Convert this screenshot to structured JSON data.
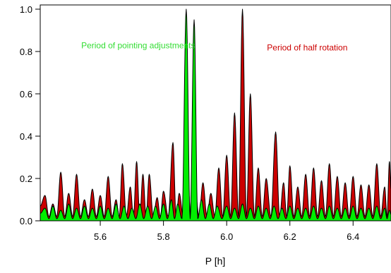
{
  "chart_data": {
    "type": "area",
    "xlabel": "P [h]",
    "ylabel": "",
    "xlim": [
      5.41,
      6.52
    ],
    "ylim": [
      0,
      1.02
    ],
    "x_ticks": [
      5.6,
      5.8,
      6.0,
      6.2,
      6.4
    ],
    "x_tick_labels": [
      "5.6",
      "5.8",
      "6.0",
      "6.2",
      "6.4"
    ],
    "y_ticks": [
      0.0,
      0.2,
      0.4,
      0.6,
      0.8,
      1.0
    ],
    "y_tick_labels": [
      "0.0",
      "0.2",
      "0.4",
      "0.6",
      "0.8",
      "1.0"
    ],
    "grid": false,
    "series": [
      {
        "color": "#cc0000",
        "baseline": 0.02,
        "peaks": [
          [
            5.425,
            0.12
          ],
          [
            5.45,
            0.08
          ],
          [
            5.475,
            0.23
          ],
          [
            5.5,
            0.13
          ],
          [
            5.525,
            0.22
          ],
          [
            5.55,
            0.1
          ],
          [
            5.575,
            0.15
          ],
          [
            5.6,
            0.12
          ],
          [
            5.625,
            0.21
          ],
          [
            5.65,
            0.1
          ],
          [
            5.67,
            0.27
          ],
          [
            5.695,
            0.16
          ],
          [
            5.715,
            0.28
          ],
          [
            5.735,
            0.22
          ],
          [
            5.755,
            0.22
          ],
          [
            5.78,
            0.11
          ],
          [
            5.8,
            0.14
          ],
          [
            5.83,
            0.37
          ],
          [
            5.85,
            0.13
          ],
          [
            5.875,
            0.22
          ],
          [
            5.9,
            0.15
          ],
          [
            5.925,
            0.18
          ],
          [
            5.95,
            0.13
          ],
          [
            5.975,
            0.25
          ],
          [
            6.0,
            0.31
          ],
          [
            6.025,
            0.51
          ],
          [
            6.05,
            1.0
          ],
          [
            6.075,
            0.6
          ],
          [
            6.1,
            0.25
          ],
          [
            6.125,
            0.2
          ],
          [
            6.155,
            0.42
          ],
          [
            6.18,
            0.18
          ],
          [
            6.2,
            0.26
          ],
          [
            6.225,
            0.16
          ],
          [
            6.25,
            0.22
          ],
          [
            6.275,
            0.25
          ],
          [
            6.3,
            0.19
          ],
          [
            6.325,
            0.27
          ],
          [
            6.35,
            0.21
          ],
          [
            6.375,
            0.18
          ],
          [
            6.4,
            0.21
          ],
          [
            6.425,
            0.17
          ],
          [
            6.45,
            0.17
          ],
          [
            6.475,
            0.27
          ],
          [
            6.5,
            0.16
          ],
          [
            6.515,
            0.28
          ]
        ]
      },
      {
        "color": "#00ee00",
        "baseline": 0.01,
        "peaks": [
          [
            5.425,
            0.06
          ],
          [
            5.45,
            0.07
          ],
          [
            5.475,
            0.05
          ],
          [
            5.5,
            0.08
          ],
          [
            5.525,
            0.06
          ],
          [
            5.55,
            0.07
          ],
          [
            5.575,
            0.06
          ],
          [
            5.6,
            0.07
          ],
          [
            5.625,
            0.06
          ],
          [
            5.65,
            0.08
          ],
          [
            5.675,
            0.07
          ],
          [
            5.7,
            0.06
          ],
          [
            5.725,
            0.08
          ],
          [
            5.75,
            0.07
          ],
          [
            5.775,
            0.07
          ],
          [
            5.8,
            0.08
          ],
          [
            5.825,
            0.1
          ],
          [
            5.845,
            0.08
          ],
          [
            5.872,
            1.0
          ],
          [
            5.897,
            0.95
          ],
          [
            5.92,
            0.1
          ],
          [
            5.945,
            0.08
          ],
          [
            5.97,
            0.07
          ],
          [
            6.0,
            0.07
          ],
          [
            6.025,
            0.06
          ],
          [
            6.05,
            0.08
          ],
          [
            6.075,
            0.06
          ],
          [
            6.1,
            0.07
          ],
          [
            6.125,
            0.06
          ],
          [
            6.15,
            0.07
          ],
          [
            6.175,
            0.06
          ],
          [
            6.2,
            0.07
          ],
          [
            6.225,
            0.06
          ],
          [
            6.25,
            0.06
          ],
          [
            6.275,
            0.07
          ],
          [
            6.3,
            0.06
          ],
          [
            6.325,
            0.07
          ],
          [
            6.35,
            0.06
          ],
          [
            6.375,
            0.06
          ],
          [
            6.4,
            0.07
          ],
          [
            6.425,
            0.06
          ],
          [
            6.45,
            0.06
          ],
          [
            6.475,
            0.07
          ],
          [
            6.5,
            0.06
          ],
          [
            6.515,
            0.05
          ]
        ]
      }
    ],
    "annotations": [
      {
        "text": "Period of pointing adjustments",
        "x": 5.72,
        "y": 0.815,
        "color": "#33dd33"
      },
      {
        "text": "Period of half rotation",
        "x": 6.255,
        "y": 0.805,
        "color": "#cc0000"
      }
    ]
  }
}
